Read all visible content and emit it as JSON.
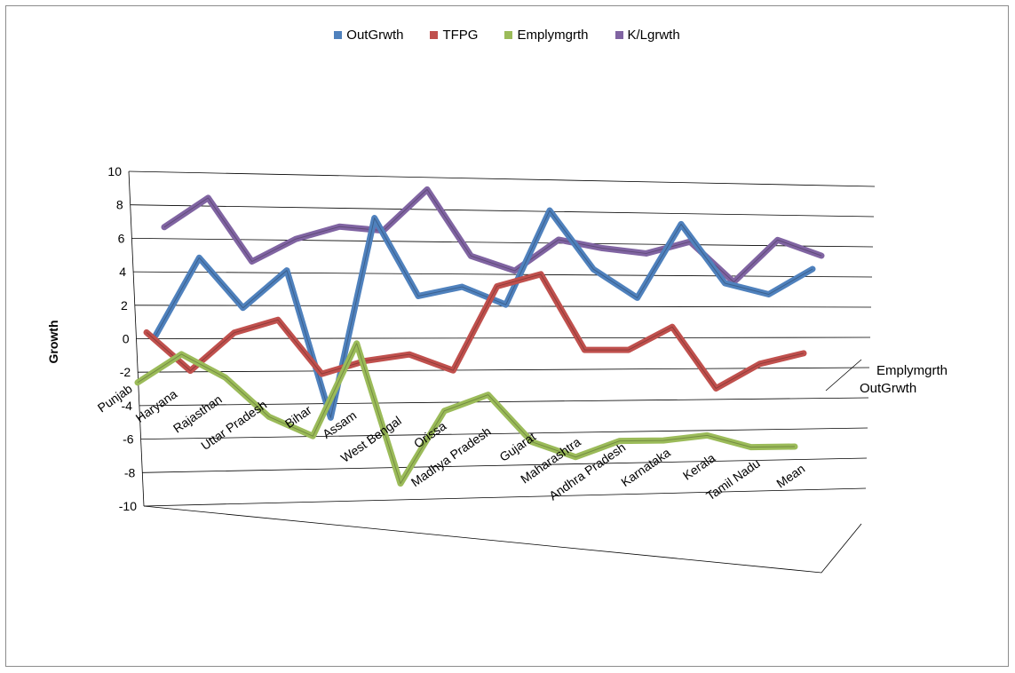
{
  "chart_data": {
    "type": "line",
    "subtype": "3d-line",
    "title": "",
    "xlabel": "",
    "ylabel": "Growth",
    "ylim": [
      -10,
      10
    ],
    "yticks": [
      10,
      8,
      6,
      4,
      2,
      0,
      -2,
      -4,
      -6,
      -8,
      -10
    ],
    "grid": true,
    "legend_position": "top",
    "categories": [
      "Punjab",
      "Haryana",
      "Rajasthan",
      "Uttar Pradesh",
      "Bihar",
      "Assam",
      "West Bengal",
      "Orissa",
      "Madhya Pradesh",
      "Gujarat",
      "Maharashtra",
      "Andhra Pradesh",
      "Karnataka",
      "Kerala",
      "Tamil Nadu",
      "Mean"
    ],
    "depth_labels": [
      "Emplymgrth",
      "OutGrwth"
    ],
    "series": [
      {
        "name": "OutGrwth",
        "color": "#4f81bd",
        "values": [
          1.5,
          6.2,
          3.2,
          5.5,
          -3.5,
          8.8,
          4.0,
          4.6,
          3.5,
          9.5,
          5.8,
          4.0,
          8.8,
          5.0,
          4.3,
          6.0
        ]
      },
      {
        "name": "TFPG",
        "color": "#c0504d",
        "values": [
          2.5,
          0.2,
          2.5,
          3.3,
          0.0,
          0.8,
          1.2,
          0.2,
          5.5,
          6.3,
          1.5,
          1.5,
          3.0,
          -1.0,
          0.6,
          1.3
        ]
      },
      {
        "name": "Emplymgrth",
        "color": "#9bbb59",
        "values": [
          0.3,
          2.0,
          0.6,
          -1.8,
          -3.0,
          2.7,
          -6.0,
          -1.5,
          -0.5,
          -3.5,
          -4.5,
          -3.5,
          -3.5,
          -3.2,
          -4.0,
          -4.0
        ]
      },
      {
        "name": "K/Lgrwth",
        "color": "#8064a2",
        "values": [
          7.2,
          9.0,
          5.2,
          6.6,
          7.4,
          7.2,
          9.8,
          5.7,
          4.8,
          6.8,
          6.3,
          6.0,
          6.8,
          4.2,
          7.0,
          6.0
        ]
      }
    ]
  }
}
